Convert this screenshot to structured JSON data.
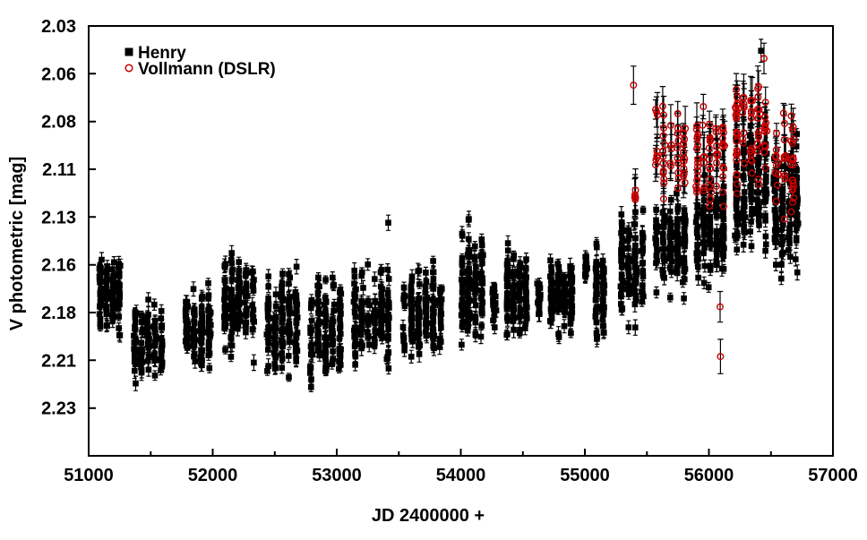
{
  "page": {
    "background": "#ffffff"
  },
  "chart_data": {
    "type": "scatter",
    "title": "",
    "xlabel": "JD 2400000 +",
    "ylabel": "V photometric [mag]",
    "axes": {
      "x": {
        "min": 51000,
        "max": 57000,
        "major_step": 1000,
        "minor_step": 500,
        "tick_labels": [
          "51000",
          "52000",
          "53000",
          "54000",
          "55000",
          "56000",
          "57000"
        ]
      },
      "y": {
        "top": 2.03,
        "bottom": 2.255,
        "tick_step": 0.025,
        "inverted": true,
        "tick_labels": [
          "2.03",
          "2.06",
          "2.08",
          "2.11",
          "2.13",
          "2.16",
          "2.18",
          "2.21",
          "2.23"
        ]
      }
    },
    "legend": {
      "position": "top-left",
      "items": [
        {
          "label": "Henry",
          "marker": "filled-square",
          "color": "#000000"
        },
        {
          "label": "Vollmann (DSLR)",
          "marker": "open-circle",
          "color": "#c80000"
        }
      ]
    },
    "series": [
      {
        "name": "Henry",
        "marker": "filled-square",
        "color": "#000000",
        "error_bar_color": "#000000",
        "err_mag_range": [
          0.002,
          0.0042
        ],
        "clusters": [
          {
            "jd": 51170,
            "jd_halfwidth": 100,
            "mag_mean": 2.172,
            "mag_spread": 0.025,
            "n": 110
          },
          {
            "jd": 51480,
            "jd_halfwidth": 135,
            "mag_mean": 2.196,
            "mag_spread": 0.025,
            "n": 100
          },
          {
            "jd": 51880,
            "jd_halfwidth": 120,
            "mag_mean": 2.187,
            "mag_spread": 0.03,
            "n": 120
          },
          {
            "jd": 52210,
            "jd_halfwidth": 140,
            "mag_mean": 2.176,
            "mag_spread": 0.035,
            "n": 130
          },
          {
            "jd": 52560,
            "jd_halfwidth": 140,
            "mag_mean": 2.187,
            "mag_spread": 0.037,
            "n": 130
          },
          {
            "jd": 52910,
            "jd_halfwidth": 145,
            "mag_mean": 2.19,
            "mag_spread": 0.04,
            "n": 130
          },
          {
            "jd": 53280,
            "jd_halfwidth": 160,
            "mag_mean": 2.182,
            "mag_spread": 0.033,
            "n": 140
          },
          {
            "jd": 53690,
            "jd_halfwidth": 175,
            "mag_mean": 2.178,
            "mag_spread": 0.032,
            "n": 140
          },
          {
            "jd": 54090,
            "jd_halfwidth": 105,
            "mag_mean": 2.168,
            "mag_spread": 0.04,
            "n": 120
          },
          {
            "jd": 54270,
            "jd_halfwidth": 35,
            "mag_mean": 2.175,
            "mag_spread": 0.014,
            "n": 22
          },
          {
            "jd": 54450,
            "jd_halfwidth": 100,
            "mag_mean": 2.17,
            "mag_spread": 0.033,
            "n": 110
          },
          {
            "jd": 54630,
            "jd_halfwidth": 30,
            "mag_mean": 2.172,
            "mag_spread": 0.013,
            "n": 20
          },
          {
            "jd": 54810,
            "jd_halfwidth": 105,
            "mag_mean": 2.171,
            "mag_spread": 0.025,
            "n": 110
          },
          {
            "jd": 55010,
            "jd_halfwidth": 25,
            "mag_mean": 2.156,
            "mag_spread": 0.01,
            "n": 16
          },
          {
            "jd": 55120,
            "jd_halfwidth": 55,
            "mag_mean": 2.17,
            "mag_spread": 0.034,
            "n": 70
          },
          {
            "jd": 55380,
            "jd_halfwidth": 110,
            "mag_mean": 2.155,
            "mag_spread": 0.04,
            "n": 110
          },
          {
            "jd": 55690,
            "jd_halfwidth": 140,
            "mag_mean": 2.144,
            "mag_spread": 0.034,
            "n": 130
          },
          {
            "jd": 56010,
            "jd_halfwidth": 130,
            "mag_mean": 2.138,
            "mag_spread": 0.034,
            "n": 130
          },
          {
            "jd": 56340,
            "jd_halfwidth": 145,
            "mag_mean": 2.115,
            "mag_spread": 0.052,
            "n": 140
          },
          {
            "jd": 56620,
            "jd_halfwidth": 115,
            "mag_mean": 2.128,
            "mag_spread": 0.045,
            "n": 110
          }
        ],
        "outliers": [
          {
            "jd": 56420,
            "mag": 2.043,
            "err": 0.006
          },
          {
            "jd": 53415,
            "mag": 2.133,
            "err": 0.004
          },
          {
            "jd": 54065,
            "mag": 2.131,
            "err": 0.004
          }
        ]
      },
      {
        "name": "Vollmann (DSLR)",
        "marker": "open-circle",
        "color": "#c80000",
        "error_bar_color": "#000000",
        "err_mag_range": [
          0.005,
          0.013
        ],
        "clusters": [
          {
            "jd": 55405,
            "jd_halfwidth": 18,
            "mag_mean": 2.119,
            "mag_spread": 0.009,
            "n": 6
          },
          {
            "jd": 55690,
            "jd_halfwidth": 140,
            "mag_mean": 2.096,
            "mag_spread": 0.038,
            "n": 48
          },
          {
            "jd": 56010,
            "jd_halfwidth": 130,
            "mag_mean": 2.1,
            "mag_spread": 0.036,
            "n": 60
          },
          {
            "jd": 56340,
            "jd_halfwidth": 145,
            "mag_mean": 2.086,
            "mag_spread": 0.04,
            "n": 75
          },
          {
            "jd": 56610,
            "jd_halfwidth": 95,
            "mag_mean": 2.105,
            "mag_spread": 0.034,
            "n": 42
          }
        ],
        "outliers": [
          {
            "jd": 55392,
            "mag": 2.061,
            "err": 0.01
          },
          {
            "jd": 56090,
            "mag": 2.177,
            "err": 0.008
          },
          {
            "jd": 56093,
            "mag": 2.203,
            "err": 0.009
          },
          {
            "jd": 56444,
            "mag": 2.047,
            "err": 0.008
          }
        ]
      }
    ]
  }
}
